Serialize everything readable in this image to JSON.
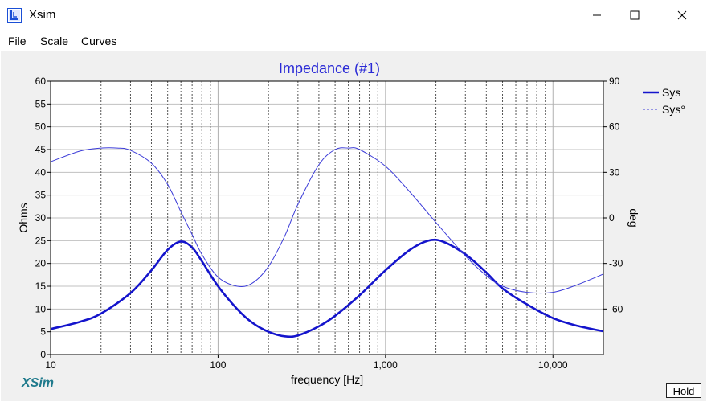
{
  "window": {
    "title": "Xsim"
  },
  "menu": {
    "items": [
      "File",
      "Scale",
      "Curves"
    ]
  },
  "brand": "XSim",
  "hold_label": "Hold",
  "chart_data": {
    "type": "line",
    "title": "Impedance (#1)",
    "xlabel": "frequency [Hz]",
    "ylabel": "Ohms",
    "y2label": "deg",
    "x_scale": "log",
    "xlim": [
      10,
      20000
    ],
    "ylim": [
      0,
      60
    ],
    "y2lim": [
      -90,
      90
    ],
    "x_tick_labels": [
      "10",
      "100",
      "1,000",
      "10,000"
    ],
    "x_tick_values": [
      10,
      100,
      1000,
      10000
    ],
    "y_ticks": [
      0,
      5,
      10,
      15,
      20,
      25,
      30,
      35,
      40,
      45,
      50,
      55,
      60
    ],
    "y2_ticks": [
      -60,
      -30,
      0,
      30,
      60,
      90
    ],
    "grid": true,
    "legend_position": "top-right",
    "series": [
      {
        "name": "Sys",
        "axis": "left",
        "color": "#1414cc",
        "style": "solid-thick",
        "x": [
          10,
          15,
          20,
          30,
          40,
          50,
          60,
          70,
          80,
          100,
          130,
          160,
          200,
          250,
          300,
          400,
          500,
          700,
          1000,
          1400,
          1800,
          2200,
          3000,
          4000,
          5000,
          7000,
          10000,
          14000,
          20000
        ],
        "y": [
          5.6,
          7.2,
          9.0,
          13.5,
          18.5,
          23.0,
          24.8,
          23.5,
          20.5,
          15.0,
          10.0,
          7.0,
          5.0,
          4.0,
          4.2,
          6.2,
          8.5,
          13.0,
          18.5,
          23.0,
          25.0,
          24.8,
          22.0,
          18.0,
          14.5,
          11.0,
          8.0,
          6.3,
          5.1
        ]
      },
      {
        "name": "Sys°",
        "axis": "right",
        "color": "#3c3cd8",
        "style": "solid-thin",
        "x": [
          10,
          15,
          20,
          25,
          30,
          40,
          50,
          60,
          70,
          80,
          100,
          130,
          160,
          200,
          250,
          300,
          400,
          500,
          600,
          700,
          1000,
          1400,
          2000,
          3000,
          4000,
          5000,
          7000,
          10000,
          14000,
          20000
        ],
        "y": [
          37,
          44,
          46,
          46,
          44.5,
          36,
          22,
          4,
          -11,
          -24,
          -39,
          -45,
          -43,
          -32,
          -12,
          9,
          35,
          45,
          46,
          45,
          34,
          17,
          -3,
          -25,
          -38,
          -45,
          -49,
          -49,
          -44,
          -37
        ]
      }
    ]
  }
}
